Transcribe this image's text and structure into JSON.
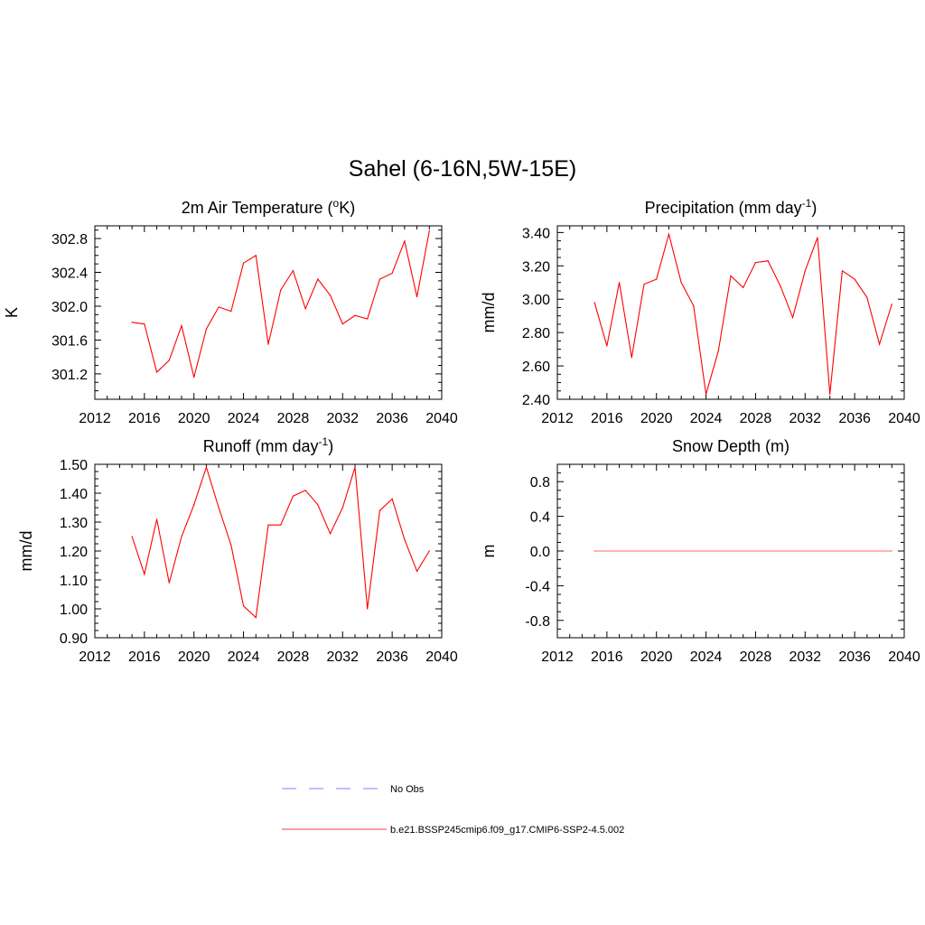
{
  "figure": {
    "title": "Sahel (6-16N,5W-15E)"
  },
  "legend": {
    "items": [
      {
        "label": "No Obs",
        "color": "#9999ff",
        "style": "dashed"
      },
      {
        "label": "b.e21.BSSP245cmip6.f09_g17.CMIP6-SSP2-4.5.002",
        "color": "#ff6666",
        "style": "solid"
      }
    ]
  },
  "chart_data": [
    {
      "id": "temp",
      "type": "line",
      "title": "2m Air Temperature (",
      "title_sup": "o",
      "title_tail": "K)",
      "ylabel": "K",
      "xlim": [
        2012,
        2040
      ],
      "ylim": [
        300.9,
        302.95
      ],
      "xticks": [
        "2012",
        "2016",
        "2020",
        "2024",
        "2028",
        "2032",
        "2036",
        "2040"
      ],
      "yticks": [
        "301.2",
        "301.6",
        "302.0",
        "302.4",
        "302.8"
      ],
      "color": "#ff0000",
      "series": [
        {
          "x": [
            2015,
            2016,
            2017,
            2018,
            2019,
            2020,
            2021,
            2022,
            2023,
            2024,
            2025,
            2026,
            2027,
            2028,
            2029,
            2030,
            2031,
            2032,
            2033,
            2034,
            2035,
            2036,
            2037,
            2038,
            2039
          ],
          "values": [
            301.81,
            301.79,
            301.22,
            301.36,
            301.77,
            301.16,
            301.73,
            301.99,
            301.94,
            302.51,
            302.6,
            301.55,
            302.19,
            302.42,
            301.97,
            302.32,
            302.13,
            301.79,
            301.89,
            301.85,
            302.32,
            302.39,
            302.77,
            302.11,
            302.89
          ]
        }
      ]
    },
    {
      "id": "precip",
      "type": "line",
      "title": "Precipitation (mm day",
      "title_sup": "-1",
      "title_tail": ")",
      "ylabel": "mm/d",
      "xlim": [
        2012,
        2040
      ],
      "ylim": [
        2.4,
        3.44
      ],
      "xticks": [
        "2012",
        "2016",
        "2020",
        "2024",
        "2028",
        "2032",
        "2036",
        "2040"
      ],
      "yticks": [
        "2.40",
        "2.60",
        "2.80",
        "3.00",
        "3.20",
        "3.40"
      ],
      "color": "#ff0000",
      "series": [
        {
          "x": [
            2015,
            2016,
            2017,
            2018,
            2019,
            2020,
            2021,
            2022,
            2023,
            2024,
            2025,
            2026,
            2027,
            2028,
            2029,
            2030,
            2031,
            2032,
            2033,
            2034,
            2035,
            2036,
            2037,
            2038,
            2039
          ],
          "values": [
            2.98,
            2.72,
            3.1,
            2.65,
            3.09,
            3.12,
            3.39,
            3.1,
            2.96,
            2.43,
            2.69,
            3.14,
            3.07,
            3.22,
            3.23,
            3.08,
            2.89,
            3.17,
            3.37,
            2.43,
            3.17,
            3.12,
            3.01,
            2.73,
            2.97
          ]
        }
      ]
    },
    {
      "id": "runoff",
      "type": "line",
      "title": "Runoff (mm day",
      "title_sup": "-1",
      "title_tail": ")",
      "ylabel": "mm/d",
      "xlim": [
        2012,
        2040
      ],
      "ylim": [
        0.9,
        1.5
      ],
      "xticks": [
        "2012",
        "2016",
        "2020",
        "2024",
        "2028",
        "2032",
        "2036",
        "2040"
      ],
      "yticks": [
        "0.90",
        "1.00",
        "1.10",
        "1.20",
        "1.30",
        "1.40",
        "1.50"
      ],
      "color": "#ff0000",
      "series": [
        {
          "x": [
            2015,
            2016,
            2017,
            2018,
            2019,
            2020,
            2021,
            2022,
            2023,
            2024,
            2025,
            2026,
            2027,
            2028,
            2029,
            2030,
            2031,
            2032,
            2033,
            2034,
            2035,
            2036,
            2037,
            2038,
            2039
          ],
          "values": [
            1.25,
            1.12,
            1.31,
            1.09,
            1.25,
            1.36,
            1.49,
            1.35,
            1.22,
            1.01,
            0.97,
            1.29,
            1.29,
            1.39,
            1.41,
            1.36,
            1.26,
            1.35,
            1.49,
            1.0,
            1.34,
            1.38,
            1.24,
            1.13,
            1.2
          ]
        }
      ]
    },
    {
      "id": "snow",
      "type": "line",
      "title": "Snow Depth (m)",
      "title_sup": "",
      "title_tail": "",
      "ylabel": "m",
      "xlim": [
        2012,
        2040
      ],
      "ylim": [
        -1.0,
        1.0
      ],
      "xticks": [
        "2012",
        "2016",
        "2020",
        "2024",
        "2028",
        "2032",
        "2036",
        "2040"
      ],
      "yticks": [
        "-0.8",
        "-0.4",
        "0.0",
        "0.4",
        "0.8"
      ],
      "color": "#ff6666",
      "series": [
        {
          "x": [
            2015,
            2039
          ],
          "values": [
            0.0,
            0.0
          ]
        }
      ]
    }
  ]
}
